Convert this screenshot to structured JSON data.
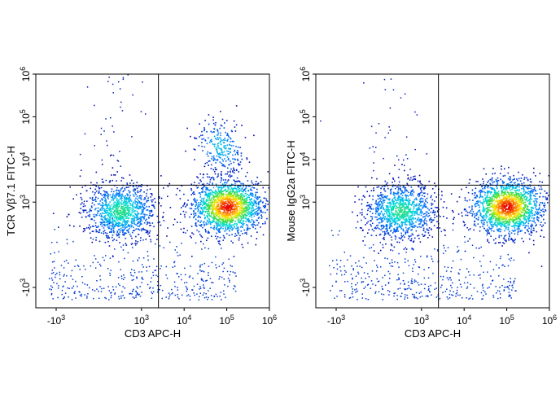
{
  "chart_data": [
    {
      "type": "scatter",
      "subtype": "flow-cytometry-density-plot",
      "xlabel": "CD3 APC-H",
      "ylabel": "TCR Vβ7.1 FITC-H",
      "x_scale": "biexponential",
      "y_scale": "biexponential",
      "xlim": [
        -3000,
        1000000
      ],
      "ylim": [
        -3000,
        1000000
      ],
      "x_ticks": [
        {
          "value": -1000,
          "base": "-10",
          "exp": "3"
        },
        {
          "value": 1000,
          "base": "10",
          "exp": "3"
        },
        {
          "value": 10000,
          "base": "10",
          "exp": "4"
        },
        {
          "value": 100000,
          "base": "10",
          "exp": "5"
        },
        {
          "value": 1000000,
          "base": "10",
          "exp": "6"
        }
      ],
      "y_ticks": [
        {
          "value": -1000,
          "base": "-10",
          "exp": "3"
        },
        {
          "value": 1000,
          "base": "10",
          "exp": "3"
        },
        {
          "value": 10000,
          "base": "10",
          "exp": "4"
        },
        {
          "value": 100000,
          "base": "10",
          "exp": "5"
        },
        {
          "value": 1000000,
          "base": "10",
          "exp": "6"
        }
      ],
      "quadrant_gate": {
        "x": 2500,
        "y": 2500
      },
      "populations": [
        {
          "x": 500,
          "y": 800,
          "density": "medium"
        },
        {
          "x": 100000,
          "y": 900,
          "density": "high"
        },
        {
          "x": 70000,
          "y": 20000,
          "density": "low"
        }
      ],
      "grid": false
    },
    {
      "type": "scatter",
      "subtype": "flow-cytometry-density-plot",
      "xlabel": "CD3 APC-H",
      "ylabel": "Mouse IgG2a FITC-H",
      "x_scale": "biexponential",
      "y_scale": "biexponential",
      "xlim": [
        -3000,
        1000000
      ],
      "ylim": [
        -3000,
        1000000
      ],
      "x_ticks": [
        {
          "value": -1000,
          "base": "-10",
          "exp": "3"
        },
        {
          "value": 1000,
          "base": "10",
          "exp": "3"
        },
        {
          "value": 10000,
          "base": "10",
          "exp": "4"
        },
        {
          "value": 100000,
          "base": "10",
          "exp": "5"
        },
        {
          "value": 1000000,
          "base": "10",
          "exp": "6"
        }
      ],
      "y_ticks": [
        {
          "value": -1000,
          "base": "-10",
          "exp": "3"
        },
        {
          "value": 1000,
          "base": "10",
          "exp": "3"
        },
        {
          "value": 10000,
          "base": "10",
          "exp": "4"
        },
        {
          "value": 100000,
          "base": "10",
          "exp": "5"
        },
        {
          "value": 1000000,
          "base": "10",
          "exp": "6"
        }
      ],
      "quadrant_gate": {
        "x": 2500,
        "y": 2500
      },
      "populations": [
        {
          "x": 500,
          "y": 800,
          "density": "medium"
        },
        {
          "x": 100000,
          "y": 900,
          "density": "high"
        }
      ],
      "grid": false
    }
  ]
}
